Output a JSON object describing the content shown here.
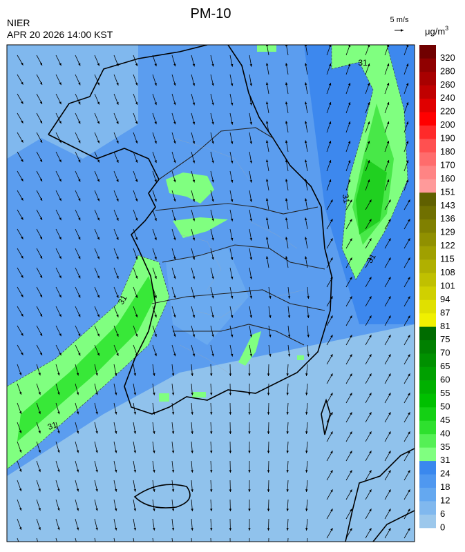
{
  "header": {
    "title": "PM-10",
    "agency": "NIER",
    "datetime": "APR 20 2026 14:00 KST",
    "wind_scale": "5 m/s",
    "unit_base": "μg/m",
    "unit_exponent": "3"
  },
  "colorbar": {
    "levels": [
      0,
      6,
      12,
      18,
      24,
      31,
      35,
      40,
      45,
      50,
      55,
      60,
      65,
      70,
      75,
      81,
      87,
      94,
      101,
      108,
      115,
      122,
      129,
      136,
      143,
      151,
      160,
      170,
      180,
      190,
      200,
      220,
      240,
      260,
      280,
      320
    ],
    "colors": [
      "#9cc8ec",
      "#80b8ee",
      "#64a8f0",
      "#4f98f0",
      "#3a88ee",
      "#80ff80",
      "#55f055",
      "#2ee02e",
      "#14d014",
      "#00c000",
      "#00b000",
      "#00a000",
      "#009000",
      "#008000",
      "#006c00",
      "#f0f000",
      "#e0e000",
      "#d0d000",
      "#c0c000",
      "#b0b000",
      "#a0a000",
      "#909000",
      "#808000",
      "#707000",
      "#606000",
      "#ff9a9a",
      "#ff8484",
      "#ff6c6c",
      "#ff5050",
      "#ff2a2a",
      "#ff0000",
      "#e00000",
      "#c00000",
      "#a80000",
      "#900000",
      "#700000"
    ]
  },
  "contour_labels": [
    "31",
    "31",
    "31",
    "31",
    "31"
  ]
}
